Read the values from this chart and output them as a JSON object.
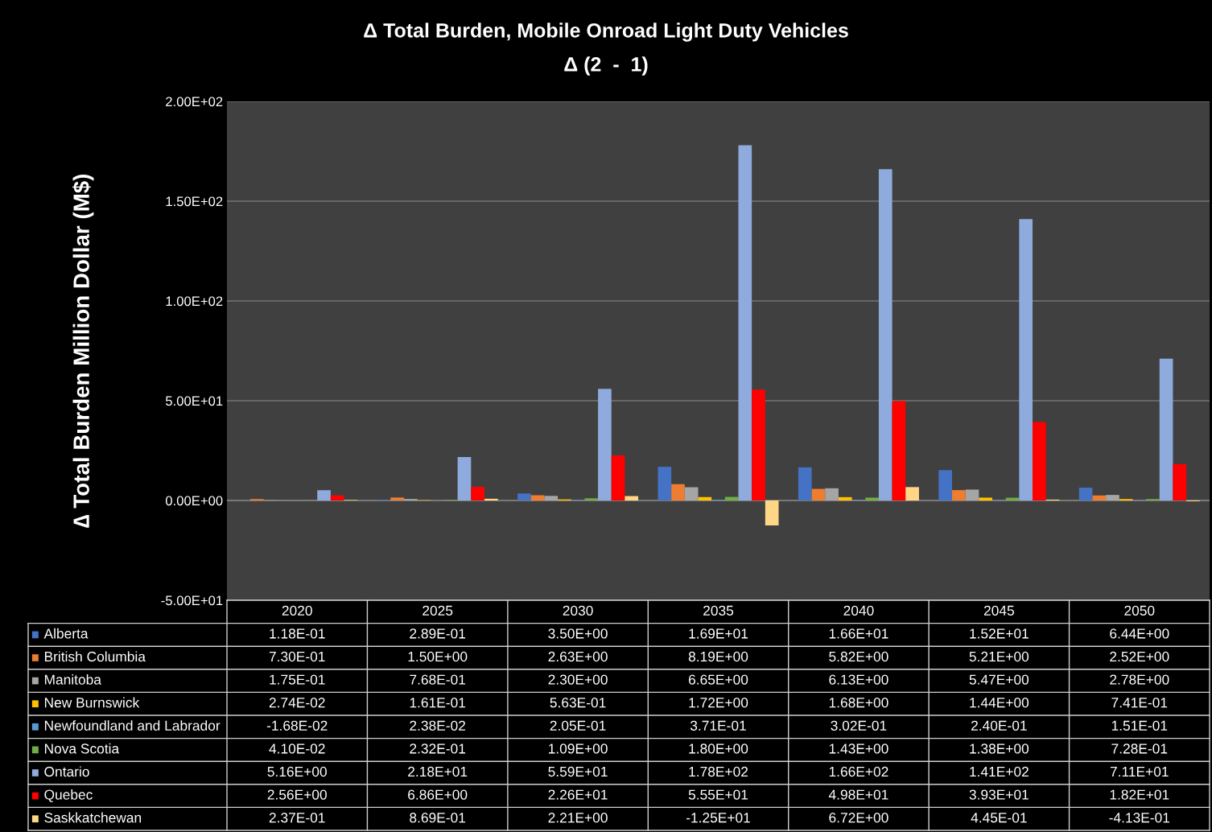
{
  "chart_data": {
    "type": "bar",
    "title": "Δ Total Burden, Mobile Onroad Light Duty Vehicles",
    "subtitle": "Δ (2  -  1)",
    "ylabel": "∆ Total Burden Million Dollar (M$)",
    "categories": [
      "2020",
      "2025",
      "2030",
      "2035",
      "2040",
      "2045",
      "2050"
    ],
    "ylim": [
      -50,
      200
    ],
    "yticks": [
      {
        "value": -50,
        "label": "-5.00E+01"
      },
      {
        "value": 0,
        "label": "0.00E+00"
      },
      {
        "value": 50,
        "label": "5.00E+01"
      },
      {
        "value": 100,
        "label": "1.00E+02"
      },
      {
        "value": 150,
        "label": "1.50E+02"
      },
      {
        "value": 200,
        "label": "2.00E+02"
      }
    ],
    "grid": "y",
    "legend": "bottom left",
    "series": [
      {
        "name": "Alberta",
        "color": "#4472c4",
        "values": [
          0.118,
          0.289,
          3.5,
          16.9,
          16.6,
          15.2,
          6.44
        ],
        "value_labels": [
          "1.18E-01",
          "2.89E-01",
          "3.50E+00",
          "1.69E+01",
          "1.66E+01",
          "1.52E+01",
          "6.44E+00"
        ]
      },
      {
        "name": "British Columbia",
        "color": "#ed7d31",
        "values": [
          0.73,
          1.5,
          2.63,
          8.19,
          5.82,
          5.21,
          2.52
        ],
        "value_labels": [
          "7.30E-01",
          "1.50E+00",
          "2.63E+00",
          "8.19E+00",
          "5.82E+00",
          "5.21E+00",
          "2.52E+00"
        ]
      },
      {
        "name": "Manitoba",
        "color": "#a5a5a5",
        "values": [
          0.175,
          0.768,
          2.3,
          6.65,
          6.13,
          5.47,
          2.78
        ],
        "value_labels": [
          "1.75E-01",
          "7.68E-01",
          "2.30E+00",
          "6.65E+00",
          "6.13E+00",
          "5.47E+00",
          "2.78E+00"
        ]
      },
      {
        "name": "New Burnswick",
        "color": "#ffc000",
        "values": [
          0.0274,
          0.161,
          0.563,
          1.72,
          1.68,
          1.44,
          0.741
        ],
        "value_labels": [
          "2.74E-02",
          "1.61E-01",
          "5.63E-01",
          "1.72E+00",
          "1.68E+00",
          "1.44E+00",
          "7.41E-01"
        ]
      },
      {
        "name": "Newfoundland and Labrador",
        "color": "#5b9bd5",
        "values": [
          -0.0168,
          0.0238,
          0.205,
          0.371,
          0.302,
          0.24,
          0.151
        ],
        "value_labels": [
          "-1.68E-02",
          "2.38E-02",
          "2.05E-01",
          "3.71E-01",
          "3.02E-01",
          "2.40E-01",
          "1.51E-01"
        ]
      },
      {
        "name": "Nova Scotia",
        "color": "#70ad47",
        "values": [
          0.041,
          0.232,
          1.09,
          1.8,
          1.43,
          1.38,
          0.728
        ],
        "value_labels": [
          "4.10E-02",
          "2.32E-01",
          "1.09E+00",
          "1.80E+00",
          "1.43E+00",
          "1.38E+00",
          "7.28E-01"
        ]
      },
      {
        "name": "Ontario",
        "color": "#8faadc",
        "values": [
          5.16,
          21.8,
          55.9,
          178,
          166,
          141,
          71.1
        ],
        "value_labels": [
          "5.16E+00",
          "2.18E+01",
          "5.59E+01",
          "1.78E+02",
          "1.66E+02",
          "1.41E+02",
          "7.11E+01"
        ]
      },
      {
        "name": "Quebec",
        "color": "#ff0000",
        "values": [
          2.56,
          6.86,
          22.6,
          55.5,
          49.8,
          39.3,
          18.2
        ],
        "value_labels": [
          "2.56E+00",
          "6.86E+00",
          "2.26E+01",
          "5.55E+01",
          "4.98E+01",
          "3.93E+01",
          "1.82E+01"
        ]
      },
      {
        "name": "Saskkatchewan",
        "color": "#ffd685",
        "values": [
          0.237,
          0.869,
          2.21,
          -12.5,
          6.72,
          0.445,
          -0.413
        ],
        "value_labels": [
          "2.37E-01",
          "8.69E-01",
          "2.21E+00",
          "-1.25E+01",
          "6.72E+00",
          "4.45E-01",
          "-4.13E-01"
        ]
      }
    ]
  }
}
